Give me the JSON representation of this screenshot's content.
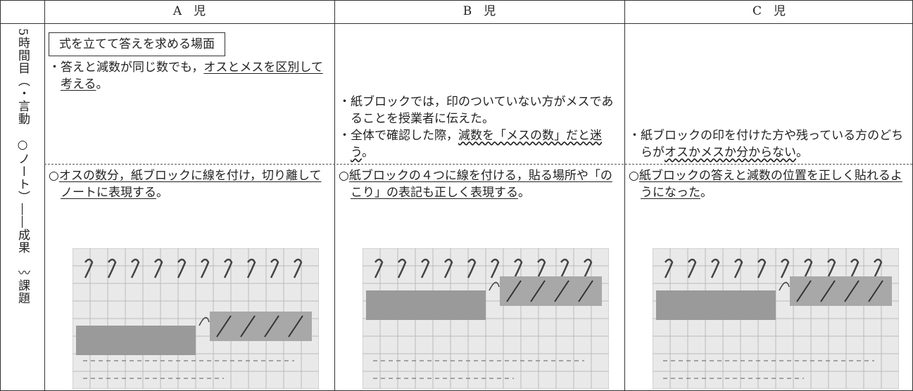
{
  "header": [
    "A　児",
    "B　児",
    "C　児"
  ],
  "side_label": "5時間目（・言動　○ノート）――成果　〰課題",
  "rows": [
    [
      {
        "box": "式を立てて答えを求める場面",
        "items": [
          [
            {
              "plain": "・答えと減数が同じ数でも，"
            },
            {
              "underline": "オスとメスを区別して考える"
            },
            {
              "plain": "。"
            }
          ]
        ]
      },
      {
        "items": [
          [
            {
              "plain": "・紙ブロックでは，印のついていない方がメスであることを授業者に伝えた。"
            }
          ],
          [
            {
              "plain": "・全体で確認した際，"
            },
            {
              "wavy": "減数を「メスの数」だと迷う"
            },
            {
              "plain": "。"
            }
          ]
        ]
      },
      {
        "items": [
          [
            {
              "plain": "・紙ブロックの印を付けた方や残っている方のどちらが"
            },
            {
              "wavy": "オスかメスか分からない"
            },
            {
              "plain": "。"
            }
          ]
        ]
      }
    ],
    [
      {
        "items": [
          [
            {
              "plain": "○"
            },
            {
              "underline": "オスの数分，紙ブロックに線を付け，切り離してノートに表現する"
            },
            {
              "plain": "。"
            }
          ]
        ]
      },
      {
        "items": [
          [
            {
              "plain": "○"
            },
            {
              "underline": "紙ブロックの４つに線を付ける，貼る場所や「のこり」の表記も正しく表現する"
            },
            {
              "plain": "。"
            }
          ]
        ]
      },
      {
        "items": [
          [
            {
              "plain": "○"
            },
            {
              "underline": "紙ブロックの答えと減数の位置を正しく貼れるようになった"
            },
            {
              "plain": "。"
            }
          ]
        ]
      }
    ]
  ]
}
